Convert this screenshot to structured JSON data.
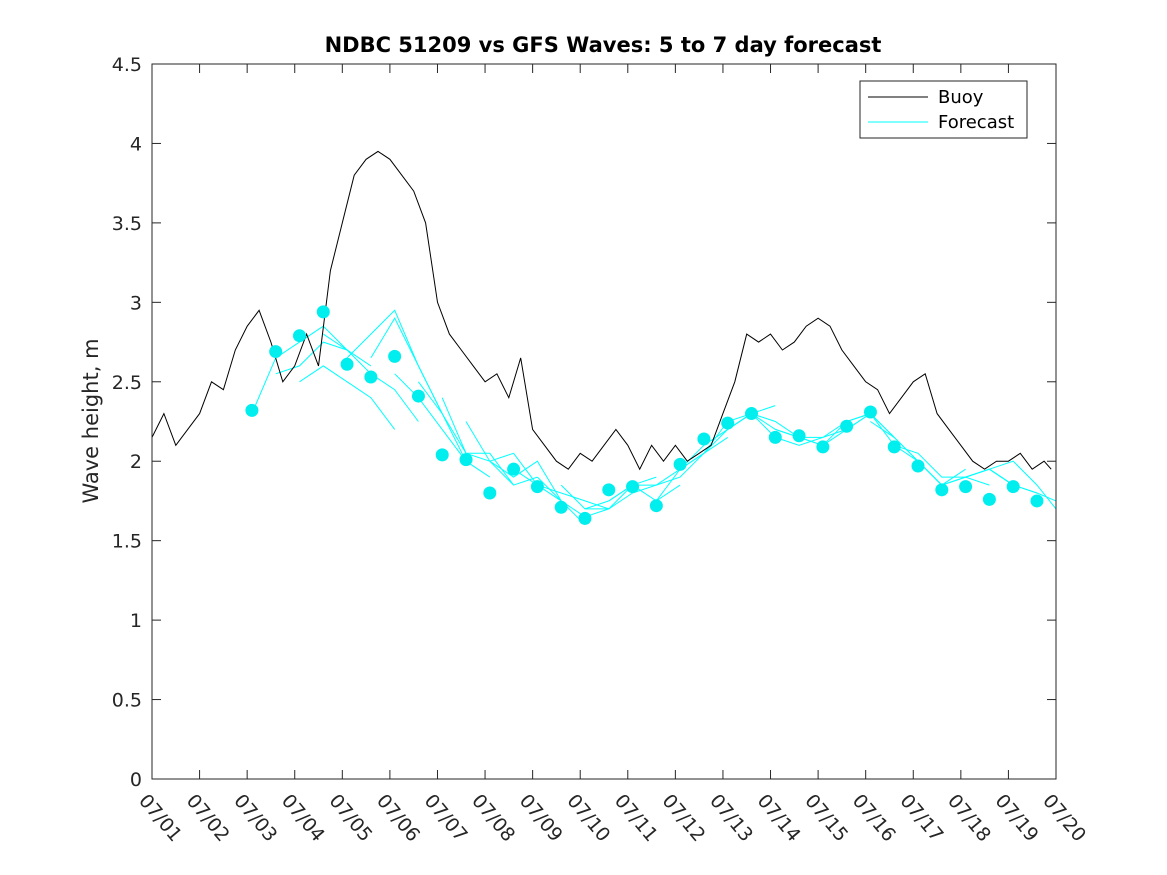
{
  "chart_data": {
    "type": "line",
    "title": "NDBC 51209 vs GFS Waves: 5 to 7 day forecast",
    "xlabel": "",
    "ylabel": "Wave height, m",
    "xlim": [
      0,
      19
    ],
    "ylim": [
      0,
      4.5
    ],
    "x_ticks": [
      0,
      1,
      2,
      3,
      4,
      5,
      6,
      7,
      8,
      9,
      10,
      11,
      12,
      13,
      14,
      15,
      16,
      17,
      18,
      19
    ],
    "x_tick_labels": [
      "07/01",
      "07/02",
      "07/03",
      "07/04",
      "07/05",
      "07/06",
      "07/07",
      "07/08",
      "07/09",
      "07/10",
      "07/11",
      "07/12",
      "07/13",
      "07/14",
      "07/15",
      "07/16",
      "07/17",
      "07/18",
      "07/19",
      "07/20"
    ],
    "y_ticks": [
      0,
      0.5,
      1,
      1.5,
      2,
      2.5,
      3,
      3.5,
      4,
      4.5
    ],
    "y_tick_labels": [
      "0",
      "0.5",
      "1",
      "1.5",
      "2",
      "2.5",
      "3",
      "3.5",
      "4",
      "4.5"
    ],
    "grid": false,
    "legend": {
      "placement": "top-right",
      "entries": [
        "Buoy",
        "Forecast"
      ]
    },
    "colors": {
      "buoy": "#000000",
      "forecast": "#00ffff",
      "forecast_markers": "#00eeee",
      "axes": "#262626"
    },
    "series": [
      {
        "name": "Buoy",
        "x": [
          0,
          0.25,
          0.5,
          0.75,
          1.0,
          1.25,
          1.5,
          1.75,
          2.0,
          2.25,
          2.5,
          2.75,
          3.0,
          3.25,
          3.5,
          3.75,
          4.0,
          4.25,
          4.5,
          4.75,
          5.0,
          5.25,
          5.5,
          5.75,
          6.0,
          6.25,
          6.5,
          6.75,
          7.0,
          7.25,
          7.5,
          7.75,
          8.0,
          8.25,
          8.5,
          8.75,
          9.0,
          9.25,
          9.5,
          9.75,
          10.0,
          10.25,
          10.5,
          10.75,
          11.0,
          11.25,
          11.5,
          11.75,
          12.0,
          12.25,
          12.5,
          12.75,
          13.0,
          13.25,
          13.5,
          13.75,
          14.0,
          14.25,
          14.5,
          14.75,
          15.0,
          15.25,
          15.5,
          15.75,
          16.0,
          16.25,
          16.5,
          16.75,
          17.0,
          17.25,
          17.5,
          17.75,
          18.0,
          18.25,
          18.5,
          18.75,
          18.9
        ],
        "y": [
          2.15,
          2.3,
          2.1,
          2.2,
          2.3,
          2.5,
          2.45,
          2.7,
          2.85,
          2.95,
          2.75,
          2.5,
          2.6,
          2.8,
          2.6,
          3.2,
          3.5,
          3.8,
          3.9,
          3.95,
          3.9,
          3.8,
          3.7,
          3.5,
          3.0,
          2.8,
          2.7,
          2.6,
          2.5,
          2.55,
          2.4,
          2.65,
          2.2,
          2.1,
          2.0,
          1.95,
          2.05,
          2.0,
          2.1,
          2.2,
          2.1,
          1.95,
          2.1,
          2.0,
          2.1,
          2.0,
          2.05,
          2.1,
          2.3,
          2.5,
          2.8,
          2.75,
          2.8,
          2.7,
          2.75,
          2.85,
          2.9,
          2.85,
          2.7,
          2.6,
          2.5,
          2.45,
          2.3,
          2.4,
          2.5,
          2.55,
          2.3,
          2.2,
          2.1,
          2.0,
          1.95,
          2.0,
          2.0,
          2.05,
          1.95,
          2.0,
          1.95
        ]
      },
      {
        "name": "Forecast",
        "segments": [
          {
            "x": [
              2.1,
              2.6,
              3.1,
              3.6,
              4.1
            ],
            "y": [
              2.3,
              2.65,
              2.75,
              2.85,
              2.7
            ]
          },
          {
            "x": [
              2.6,
              3.1,
              3.6,
              4.1,
              4.6
            ],
            "y": [
              2.55,
              2.6,
              2.75,
              2.7,
              2.6
            ]
          },
          {
            "x": [
              3.1,
              3.6,
              4.1,
              4.6,
              5.1
            ],
            "y": [
              2.5,
              2.6,
              2.5,
              2.4,
              2.2
            ]
          },
          {
            "x": [
              3.6,
              4.1,
              4.6,
              5.1,
              5.6
            ],
            "y": [
              2.8,
              2.7,
              2.55,
              2.45,
              2.25
            ]
          },
          {
            "x": [
              4.1,
              4.6,
              5.1,
              5.6,
              6.1
            ],
            "y": [
              2.65,
              2.8,
              2.95,
              2.6,
              2.3
            ]
          },
          {
            "x": [
              4.6,
              5.1,
              5.6,
              6.1,
              6.6
            ],
            "y": [
              2.65,
              2.9,
              2.6,
              2.3,
              2.0
            ]
          },
          {
            "x": [
              5.1,
              5.6,
              6.1,
              6.6,
              7.1
            ],
            "y": [
              2.55,
              2.4,
              2.2,
              2.0,
              1.9
            ]
          },
          {
            "x": [
              5.6,
              6.1,
              6.6,
              7.1,
              7.6
            ],
            "y": [
              2.5,
              2.3,
              2.05,
              2.05,
              1.85
            ]
          },
          {
            "x": [
              6.1,
              6.6,
              7.1,
              7.6,
              8.1
            ],
            "y": [
              2.4,
              2.05,
              2.0,
              1.85,
              1.9
            ]
          },
          {
            "x": [
              6.6,
              7.1,
              7.6,
              8.1,
              8.6
            ],
            "y": [
              2.25,
              2.0,
              1.9,
              2.0,
              1.75
            ]
          },
          {
            "x": [
              7.1,
              7.6,
              8.1,
              8.6,
              9.1
            ],
            "y": [
              2.0,
              2.05,
              1.85,
              1.75,
              1.6
            ]
          },
          {
            "x": [
              7.6,
              8.1,
              8.6,
              9.1,
              9.6
            ],
            "y": [
              1.95,
              1.85,
              1.8,
              1.75,
              1.7
            ]
          },
          {
            "x": [
              8.1,
              8.6,
              9.1,
              9.6,
              10.1
            ],
            "y": [
              1.9,
              1.75,
              1.65,
              1.7,
              1.8
            ]
          },
          {
            "x": [
              8.6,
              9.1,
              9.6,
              10.1,
              10.6
            ],
            "y": [
              1.85,
              1.7,
              1.7,
              1.85,
              1.9
            ]
          },
          {
            "x": [
              9.1,
              9.6,
              10.1,
              10.6,
              11.1
            ],
            "y": [
              1.7,
              1.75,
              1.85,
              1.75,
              1.85
            ]
          },
          {
            "x": [
              9.6,
              10.1,
              10.6,
              11.1,
              11.6
            ],
            "y": [
              1.75,
              1.85,
              1.85,
              1.9,
              2.05
            ]
          },
          {
            "x": [
              10.1,
              10.6,
              11.1,
              11.6,
              12.1
            ],
            "y": [
              1.8,
              1.85,
              1.95,
              2.05,
              2.15
            ]
          },
          {
            "x": [
              10.6,
              11.1,
              11.6,
              12.1,
              12.6
            ],
            "y": [
              1.75,
              1.95,
              2.05,
              2.25,
              2.3
            ]
          },
          {
            "x": [
              11.1,
              11.6,
              12.1,
              12.6,
              13.1
            ],
            "y": [
              1.95,
              2.1,
              2.2,
              2.3,
              2.35
            ]
          },
          {
            "x": [
              11.6,
              12.1,
              12.6,
              13.1,
              13.6
            ],
            "y": [
              2.05,
              2.2,
              2.3,
              2.25,
              2.15
            ]
          },
          {
            "x": [
              12.1,
              12.6,
              13.1,
              13.6,
              14.1
            ],
            "y": [
              2.2,
              2.3,
              2.2,
              2.15,
              2.1
            ]
          },
          {
            "x": [
              12.6,
              13.1,
              13.6,
              14.1,
              14.6
            ],
            "y": [
              2.3,
              2.15,
              2.1,
              2.15,
              2.2
            ]
          },
          {
            "x": [
              13.1,
              13.6,
              14.1,
              14.6,
              15.1
            ],
            "y": [
              2.2,
              2.15,
              2.15,
              2.25,
              2.3
            ]
          },
          {
            "x": [
              13.6,
              14.1,
              14.6,
              15.1,
              15.6
            ],
            "y": [
              2.15,
              2.1,
              2.2,
              2.3,
              2.15
            ]
          },
          {
            "x": [
              14.1,
              14.6,
              15.1,
              15.6,
              16.1
            ],
            "y": [
              2.1,
              2.25,
              2.3,
              2.15,
              2.0
            ]
          },
          {
            "x": [
              14.6,
              15.1,
              15.6,
              16.1,
              16.6
            ],
            "y": [
              2.2,
              2.3,
              2.1,
              2.0,
              1.85
            ]
          },
          {
            "x": [
              15.1,
              15.6,
              16.1,
              16.6,
              17.1
            ],
            "y": [
              2.25,
              2.15,
              2.0,
              1.85,
              1.95
            ]
          },
          {
            "x": [
              15.6,
              16.1,
              16.6,
              17.1,
              17.6
            ],
            "y": [
              2.1,
              2.05,
              1.9,
              1.9,
              1.85
            ]
          },
          {
            "x": [
              16.1,
              16.6,
              17.1,
              17.6,
              18.1
            ],
            "y": [
              2.0,
              1.85,
              1.9,
              1.95,
              1.85
            ]
          },
          {
            "x": [
              16.6,
              17.1,
              17.6,
              18.1,
              18.6
            ],
            "y": [
              1.85,
              1.9,
              1.95,
              1.85,
              1.8
            ]
          },
          {
            "x": [
              17.1,
              17.6,
              18.1,
              18.6,
              19.0
            ],
            "y": [
              1.9,
              1.95,
              1.85,
              1.8,
              1.75
            ]
          },
          {
            "x": [
              17.6,
              18.1,
              18.6,
              19.0
            ],
            "y": [
              1.95,
              2.0,
              1.85,
              1.7
            ]
          }
        ],
        "markers": {
          "x": [
            2.1,
            2.6,
            3.1,
            3.6,
            4.1,
            4.6,
            5.1,
            5.6,
            6.1,
            6.6,
            7.1,
            7.6,
            8.1,
            8.6,
            9.1,
            9.6,
            10.1,
            10.6,
            11.1,
            11.6,
            12.1,
            12.6,
            13.1,
            13.6,
            14.1,
            14.6,
            15.1,
            15.6,
            16.1,
            16.6,
            17.1,
            17.6,
            18.1,
            18.6
          ],
          "y": [
            2.32,
            2.69,
            2.79,
            2.94,
            2.61,
            2.53,
            2.66,
            2.41,
            2.04,
            2.01,
            1.8,
            1.95,
            1.84,
            1.71,
            1.64,
            1.82,
            1.84,
            1.72,
            1.98,
            2.14,
            2.24,
            2.3,
            2.15,
            2.16,
            2.09,
            2.22,
            2.31,
            2.09,
            1.97,
            1.82,
            1.84,
            1.76,
            1.84,
            1.75
          ]
        }
      }
    ]
  }
}
